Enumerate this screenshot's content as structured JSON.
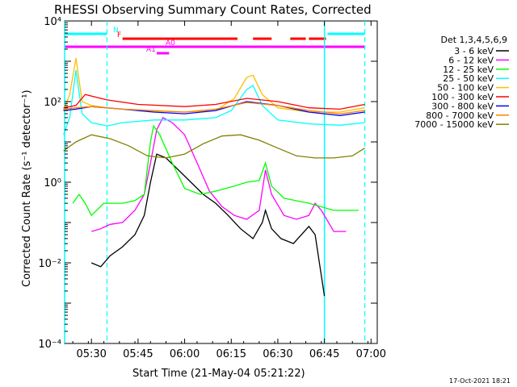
{
  "chart_data": {
    "type": "line",
    "title": "RHESSI Observing Summary Count Rates, Corrected",
    "xlabel": "Start Time (21-May-04 05:21:22)",
    "ylabel": "Corrected Count Rate (s⁻¹ detector⁻¹)",
    "yscale": "log",
    "ylim": [
      0.0001,
      10000
    ],
    "x_ticks": [
      "05:30",
      "05:45",
      "06:00",
      "06:15",
      "06:30",
      "06:45",
      "07:00"
    ],
    "y_ticks": [
      "10⁻⁴",
      "10⁻²",
      "10⁰",
      "10²",
      "10⁴"
    ],
    "legend_title": "Det 1,3,4,5,6,9",
    "legend_position": "top-right",
    "timestamp": "17-Oct-2021 18:21",
    "flags": [
      {
        "label": "N",
        "color": "#00ffff",
        "spans": [
          [
            "05:21:22",
            "05:35:00"
          ],
          [
            "06:46:00",
            "06:58:00"
          ]
        ]
      },
      {
        "label": "F",
        "color": "#ff0000",
        "spans": [
          [
            "05:40:00",
            "06:17:00"
          ],
          [
            "06:22:00",
            "06:28:00"
          ],
          [
            "06:34:00",
            "06:39:00"
          ],
          [
            "06:40:00",
            "06:45:30"
          ]
        ]
      },
      {
        "label": "A0",
        "color": "#ff00ff",
        "spans": [
          [
            "05:21:22",
            "06:58:00"
          ]
        ]
      },
      {
        "label": "A1",
        "color": "#ff00ff",
        "spans": [
          [
            "05:51:00",
            "05:55:00"
          ]
        ]
      }
    ],
    "vertical_lines": {
      "solid_cyan": [
        "05:21:22",
        "06:45:00"
      ],
      "dashed_cyan": [
        "05:35:00",
        "06:58:00"
      ]
    },
    "series": [
      {
        "name": "3 - 6 keV",
        "color": "#000000",
        "x": [
          "05:30",
          "05:33",
          "05:36",
          "05:40",
          "05:44",
          "05:47",
          "05:49",
          "05:51",
          "05:54",
          "05:58",
          "06:02",
          "06:06",
          "06:10",
          "06:14",
          "06:18",
          "06:22",
          "06:25",
          "06:26",
          "06:28",
          "06:31",
          "06:35",
          "06:40",
          "06:42",
          "06:45"
        ],
        "values": [
          0.01,
          0.008,
          0.015,
          0.025,
          0.05,
          0.15,
          1.0,
          5.0,
          4.0,
          2.0,
          1.0,
          0.5,
          0.3,
          0.15,
          0.07,
          0.04,
          0.1,
          0.2,
          0.07,
          0.04,
          0.03,
          0.08,
          0.05,
          0.0015
        ]
      },
      {
        "name": "6 - 12 keV",
        "color": "#ff00ff",
        "x": [
          "05:30",
          "05:33",
          "05:36",
          "05:40",
          "05:44",
          "05:47",
          "05:49",
          "05:51",
          "05:53",
          "05:56",
          "06:00",
          "06:04",
          "06:08",
          "06:12",
          "06:16",
          "06:20",
          "06:24",
          "06:26",
          "06:28",
          "06:32",
          "06:36",
          "06:40",
          "06:42",
          "06:44",
          "06:48",
          "06:52"
        ],
        "values": [
          0.06,
          0.07,
          0.09,
          0.1,
          0.2,
          0.5,
          3.0,
          20.0,
          40.0,
          30.0,
          15.0,
          3.0,
          0.6,
          0.25,
          0.15,
          0.12,
          0.2,
          2.0,
          0.5,
          0.15,
          0.12,
          0.15,
          0.3,
          0.2,
          0.06,
          0.06
        ]
      },
      {
        "name": "12 - 25 keV",
        "color": "#00ff00",
        "x": [
          "05:24",
          "05:26",
          "05:28",
          "05:30",
          "05:34",
          "05:40",
          "05:44",
          "05:47",
          "05:49",
          "05:50",
          "05:52",
          "05:56",
          "06:00",
          "06:05",
          "06:10",
          "06:16",
          "06:20",
          "06:24",
          "06:26",
          "06:28",
          "06:32",
          "06:40",
          "06:48",
          "06:56"
        ],
        "values": [
          0.3,
          0.5,
          0.3,
          0.15,
          0.3,
          0.3,
          0.35,
          0.5,
          10.0,
          25.0,
          15.0,
          3.0,
          0.7,
          0.5,
          0.6,
          0.8,
          1.0,
          1.1,
          3.0,
          0.8,
          0.4,
          0.3,
          0.2,
          0.2
        ]
      },
      {
        "name": "25 - 50 keV",
        "color": "#00ffff",
        "x": [
          "05:21",
          "05:23",
          "05:25",
          "05:27",
          "05:30",
          "05:35",
          "05:40",
          "05:50",
          "06:00",
          "06:10",
          "06:15",
          "06:20",
          "06:22",
          "06:25",
          "06:30",
          "06:40",
          "06:50",
          "06:58"
        ],
        "values": [
          15.0,
          40.0,
          600.0,
          50.0,
          30.0,
          25.0,
          30.0,
          35.0,
          35.0,
          40.0,
          60.0,
          200.0,
          250.0,
          80.0,
          35.0,
          28.0,
          26.0,
          30.0
        ]
      },
      {
        "name": "50 - 100 keV",
        "color": "#ffbf00",
        "x": [
          "05:21",
          "05:23",
          "05:25",
          "05:27",
          "05:30",
          "05:35",
          "05:45",
          "06:00",
          "06:10",
          "06:16",
          "06:20",
          "06:22",
          "06:25",
          "06:30",
          "06:40",
          "06:50",
          "06:58"
        ],
        "values": [
          60.0,
          150.0,
          1200.0,
          100.0,
          80.0,
          70.0,
          60.0,
          55.0,
          60.0,
          120.0,
          400.0,
          450.0,
          150.0,
          70.0,
          55.0,
          55.0,
          70.0
        ]
      },
      {
        "name": "100 - 300 keV",
        "color": "#ff0000",
        "x": [
          "05:21",
          "05:25",
          "05:28",
          "05:35",
          "05:45",
          "06:00",
          "06:10",
          "06:20",
          "06:30",
          "06:40",
          "06:50",
          "06:58"
        ],
        "values": [
          70.0,
          80.0,
          150.0,
          110.0,
          85.0,
          75.0,
          85.0,
          120.0,
          100.0,
          70.0,
          65.0,
          85.0
        ]
      },
      {
        "name": "300 - 800 keV",
        "color": "#0000ff",
        "x": [
          "05:21",
          "05:25",
          "05:30",
          "05:40",
          "05:50",
          "06:00",
          "06:10",
          "06:20",
          "06:30",
          "06:40",
          "06:50",
          "06:58"
        ],
        "values": [
          60.0,
          65.0,
          75.0,
          65.0,
          55.0,
          50.0,
          60.0,
          100.0,
          80.0,
          55.0,
          45.0,
          55.0
        ]
      },
      {
        "name": "800 - 7000 keV",
        "color": "#ff8000",
        "x": [
          "05:21",
          "05:25",
          "05:30",
          "05:40",
          "05:50",
          "06:00",
          "06:10",
          "06:20",
          "06:30",
          "06:40",
          "06:50",
          "06:58"
        ],
        "values": [
          65.0,
          70.0,
          75.0,
          65.0,
          60.0,
          55.0,
          65.0,
          95.0,
          80.0,
          60.0,
          50.0,
          60.0
        ]
      },
      {
        "name": "7000 - 15000 keV",
        "color": "#808000",
        "x": [
          "05:21",
          "05:25",
          "05:30",
          "05:36",
          "05:42",
          "05:48",
          "05:54",
          "06:00",
          "06:06",
          "06:12",
          "06:18",
          "06:24",
          "06:30",
          "06:36",
          "06:42",
          "06:48",
          "06:54",
          "06:58"
        ],
        "values": [
          6.0,
          10.0,
          15.0,
          12.0,
          8.0,
          4.5,
          4.0,
          5.0,
          9.0,
          14.0,
          15.0,
          11.0,
          7.0,
          4.5,
          4.0,
          4.0,
          4.5,
          7.0
        ]
      }
    ]
  }
}
